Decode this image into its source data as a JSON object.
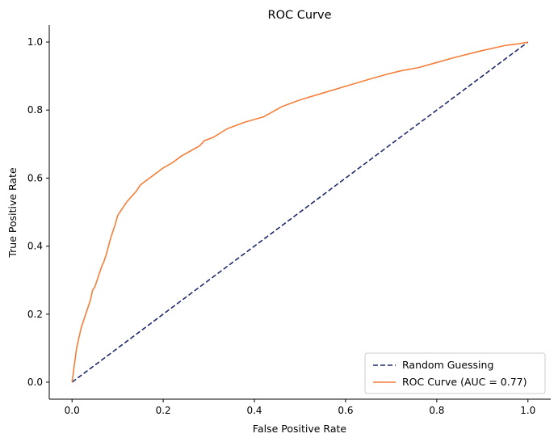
{
  "chart_data": {
    "type": "line",
    "title": "ROC Curve",
    "xlabel": "False Positive Rate",
    "ylabel": "True Positive Rate",
    "xlim": [
      -0.05,
      1.05
    ],
    "ylim": [
      -0.05,
      1.05
    ],
    "xticks": [
      0.0,
      0.2,
      0.4,
      0.6,
      0.8,
      1.0
    ],
    "xtick_labels": [
      "0.0",
      "0.2",
      "0.4",
      "0.6",
      "0.8",
      "1.0"
    ],
    "yticks": [
      0.0,
      0.2,
      0.4,
      0.6,
      0.8,
      1.0
    ],
    "ytick_labels": [
      "0.0",
      "0.2",
      "0.4",
      "0.6",
      "0.8",
      "1.0"
    ],
    "grid": false,
    "legend_position": "lower-right",
    "series": [
      {
        "name": "Random Guessing",
        "color": "#1f2a6b",
        "style": "dashed",
        "x": [
          0.0,
          1.0
        ],
        "y": [
          0.0,
          1.0
        ]
      },
      {
        "name": "ROC Curve (AUC = 0.77)",
        "color": "#f47f3a",
        "style": "solid",
        "x": [
          0.0,
          0.005,
          0.01,
          0.015,
          0.02,
          0.025,
          0.03,
          0.035,
          0.04,
          0.045,
          0.05,
          0.055,
          0.06,
          0.065,
          0.07,
          0.075,
          0.08,
          0.085,
          0.09,
          0.095,
          0.1,
          0.11,
          0.12,
          0.13,
          0.14,
          0.15,
          0.16,
          0.17,
          0.18,
          0.19,
          0.2,
          0.22,
          0.24,
          0.26,
          0.28,
          0.29,
          0.31,
          0.34,
          0.38,
          0.42,
          0.46,
          0.5,
          0.55,
          0.6,
          0.65,
          0.69,
          0.72,
          0.76,
          0.8,
          0.84,
          0.9,
          0.95,
          0.98,
          1.0
        ],
        "y": [
          0.0,
          0.05,
          0.1,
          0.13,
          0.16,
          0.18,
          0.2,
          0.22,
          0.24,
          0.27,
          0.28,
          0.3,
          0.32,
          0.34,
          0.355,
          0.375,
          0.4,
          0.425,
          0.445,
          0.465,
          0.49,
          0.51,
          0.53,
          0.545,
          0.56,
          0.58,
          0.59,
          0.6,
          0.61,
          0.62,
          0.63,
          0.645,
          0.665,
          0.68,
          0.695,
          0.71,
          0.72,
          0.745,
          0.765,
          0.78,
          0.81,
          0.83,
          0.85,
          0.87,
          0.89,
          0.905,
          0.915,
          0.925,
          0.94,
          0.955,
          0.975,
          0.99,
          0.995,
          1.0
        ]
      }
    ]
  }
}
